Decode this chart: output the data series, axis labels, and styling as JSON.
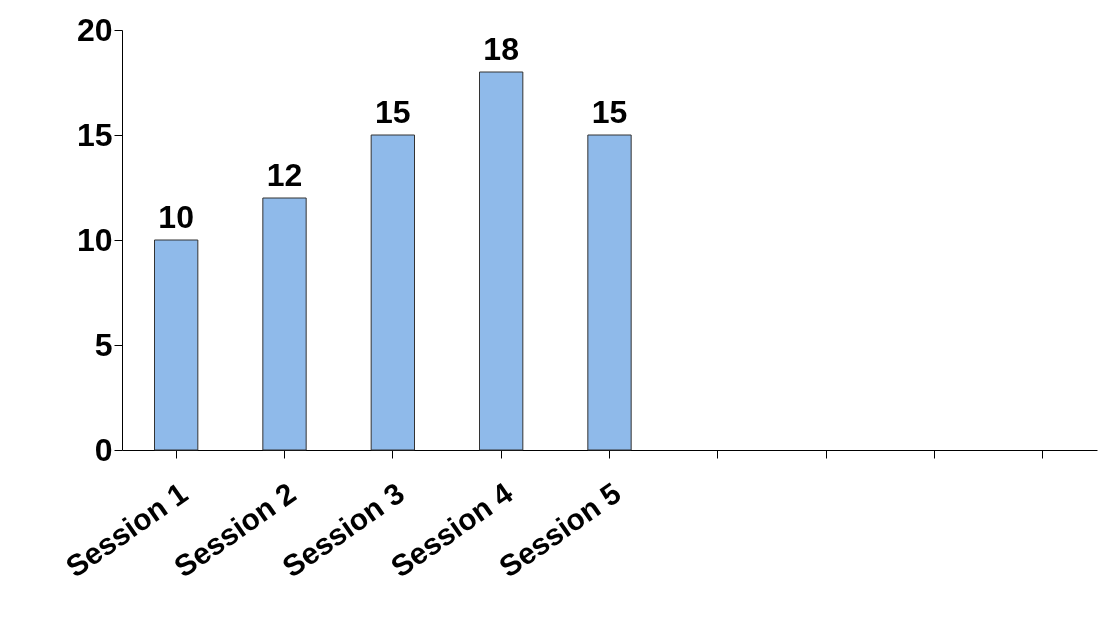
{
  "chart_data": {
    "type": "bar",
    "categories": [
      "Session 1",
      "Session 2",
      "Session 3",
      "Session 4",
      "Session 5",
      null,
      null,
      null,
      null
    ],
    "values": [
      10,
      12,
      15,
      18,
      15,
      null,
      null,
      null,
      null
    ],
    "color": "#8fbaea",
    "ylim": [
      0,
      20
    ],
    "yticks": [
      0,
      5,
      10,
      15,
      20
    ],
    "grid": false,
    "data_labels": true
  }
}
